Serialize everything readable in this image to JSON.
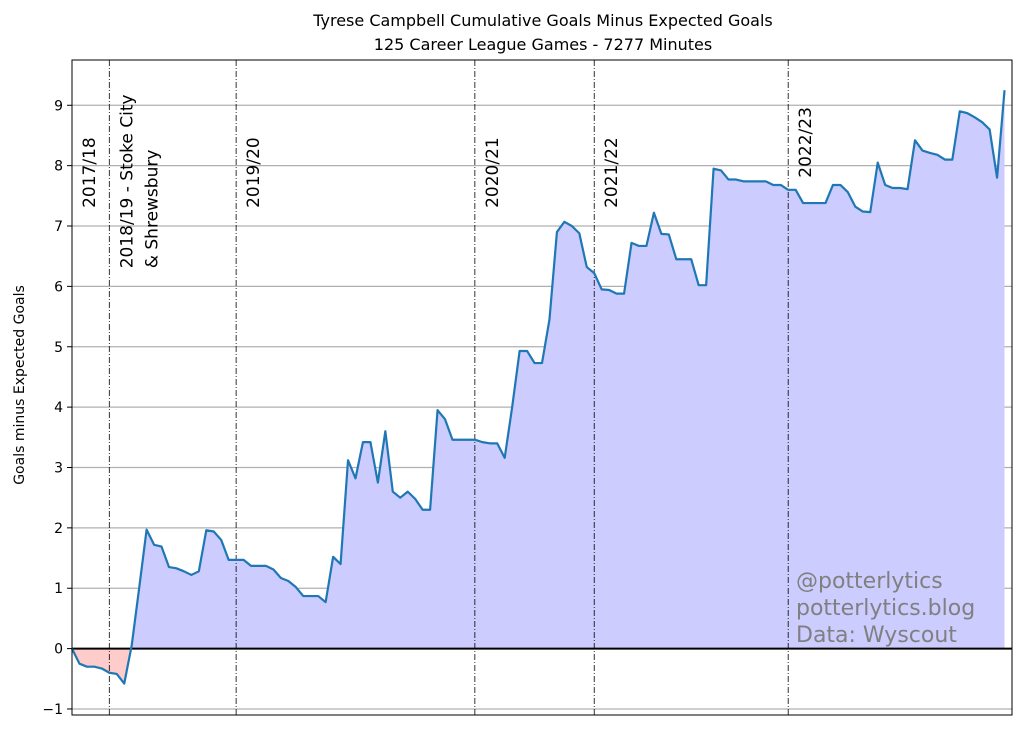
{
  "chart_data": {
    "type": "area",
    "title": "Tyrese Campbell Cumulative Goals Minus Expected Goals",
    "subtitle": "125 Career League Games - 7277 Minutes",
    "xlabel": "",
    "ylabel": "Goals minus Expected Goals",
    "xlim": [
      0,
      126
    ],
    "ylim": [
      -1.1,
      9.75
    ],
    "yticks": [
      -1,
      0,
      1,
      2,
      3,
      4,
      5,
      6,
      7,
      8,
      9
    ],
    "grid": "y-only",
    "legend": "none",
    "colors": {
      "line": "#1f77b4",
      "positive_fill": "#ccccff",
      "negative_fill": "#ffcccc",
      "zero_line": "#000000",
      "season_line": "#000000"
    },
    "seasons": [
      {
        "label": "2017/18",
        "start_game": 0
      },
      {
        "label": "2018/19 - Stoke City",
        "label_line2": "& Shrewsbury",
        "start_game": 5
      },
      {
        "label": "2019/20",
        "start_game": 22
      },
      {
        "label": "2020/21",
        "start_game": 54
      },
      {
        "label": "2021/22",
        "start_game": 70
      },
      {
        "label": "2022/23",
        "start_game": 96
      }
    ],
    "values": [
      0,
      -0.25,
      -0.3,
      -0.3,
      -0.33,
      -0.4,
      -0.42,
      -0.58,
      0.05,
      1.0,
      1.97,
      1.72,
      1.69,
      1.35,
      1.33,
      1.28,
      1.22,
      1.28,
      1.96,
      1.94,
      1.8,
      1.47,
      1.47,
      1.47,
      1.37,
      1.37,
      1.37,
      1.31,
      1.17,
      1.12,
      1.02,
      0.87,
      0.87,
      0.87,
      0.77,
      1.52,
      1.4,
      3.12,
      2.82,
      3.42,
      3.42,
      2.75,
      3.6,
      2.6,
      2.5,
      2.6,
      2.48,
      2.3,
      2.3,
      3.95,
      3.8,
      3.46,
      3.46,
      3.46,
      3.46,
      3.42,
      3.4,
      3.4,
      3.16,
      4.0,
      4.93,
      4.93,
      4.73,
      4.73,
      5.45,
      6.9,
      7.07,
      7.0,
      6.88,
      6.32,
      6.22,
      5.95,
      5.94,
      5.88,
      5.88,
      6.72,
      6.67,
      6.67,
      7.22,
      6.87,
      6.86,
      6.45,
      6.45,
      6.45,
      6.02,
      6.02,
      7.95,
      7.92,
      7.77,
      7.77,
      7.74,
      7.74,
      7.74,
      7.74,
      7.68,
      7.68,
      7.6,
      7.6,
      7.38,
      7.38,
      7.38,
      7.38,
      7.68,
      7.68,
      7.56,
      7.32,
      7.24,
      7.23,
      8.05,
      7.68,
      7.63,
      7.63,
      7.61,
      8.42,
      8.25,
      8.21,
      8.18,
      8.1,
      8.1,
      8.9,
      8.87,
      8.8,
      8.72,
      8.6,
      7.8,
      9.25
    ]
  },
  "watermark": [
    "@potterlytics",
    "potterlytics.blog",
    "Data: Wyscout"
  ]
}
